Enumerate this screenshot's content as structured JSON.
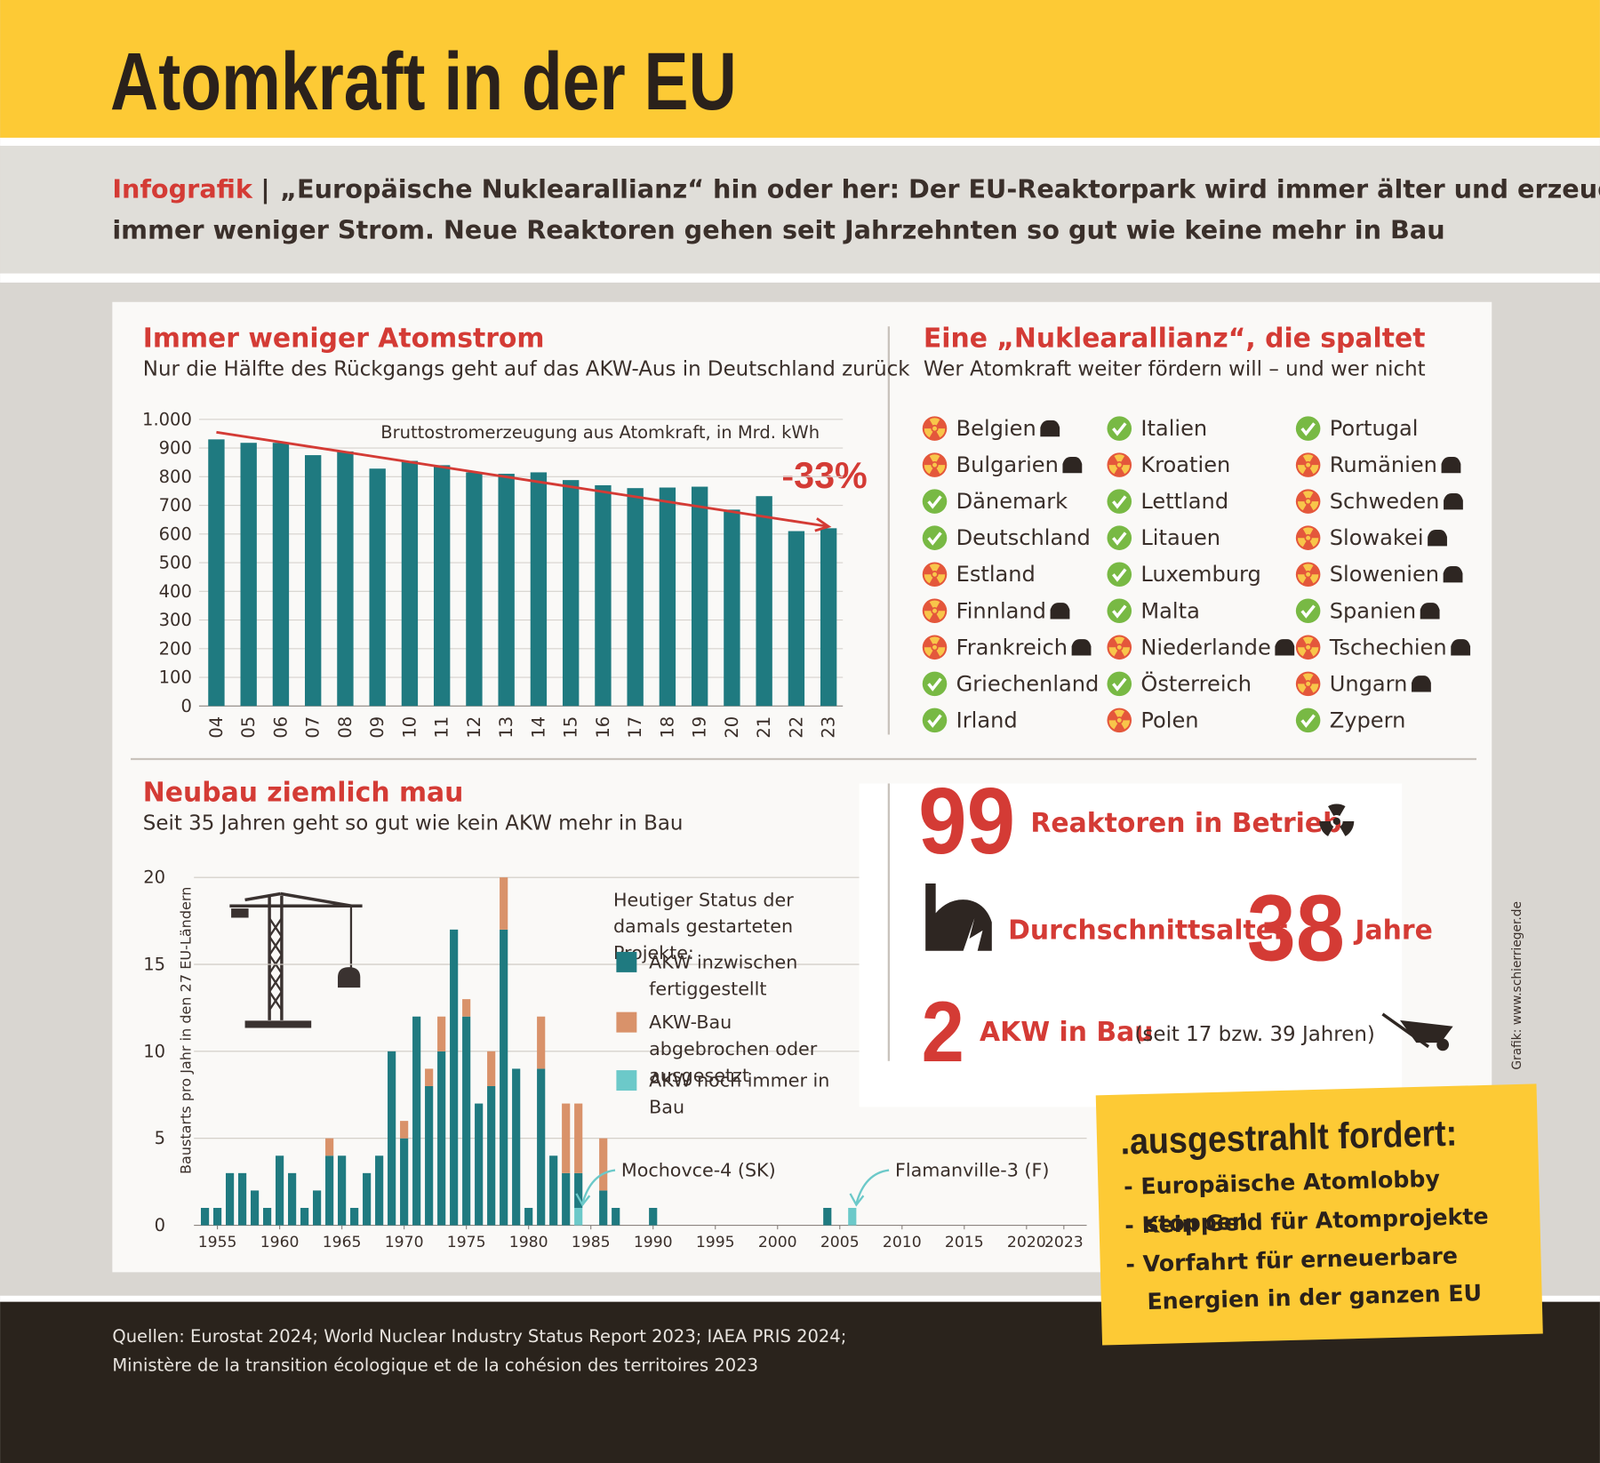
{
  "header": {
    "title": "Atomkraft in der EU",
    "tag": "Infografik",
    "separator": "|",
    "subtitle_lines": [
      "„Europäische Nuklearallianz“ hin oder her: Der EU-Reaktorpark wird immer älter und erzeugt",
      "immer weniger Strom. Neue Reaktoren gehen seit Jahrzehnten so gut wie keine mehr in Bau"
    ]
  },
  "chart_data": [
    {
      "type": "bar",
      "title": "Immer weniger Atomstrom",
      "subtitle": "Nur die Hälfte des Rückgangs geht auf das AKW-Aus in Deutschland zurück",
      "annotation": "Bruttostromerzeugung aus Atomkraft, in Mrd. kWh",
      "change_label": "-33%",
      "trend": {
        "start": 955,
        "end": 626
      },
      "categories": [
        "04",
        "05",
        "06",
        "07",
        "08",
        "09",
        "10",
        "11",
        "12",
        "13",
        "14",
        "15",
        "16",
        "17",
        "18",
        "19",
        "20",
        "21",
        "22",
        "23"
      ],
      "values": [
        930,
        918,
        918,
        875,
        888,
        828,
        855,
        840,
        815,
        810,
        815,
        788,
        770,
        760,
        762,
        765,
        685,
        732,
        610,
        620
      ],
      "color": "#1f7a80",
      "ylim": [
        0,
        1000
      ],
      "yticks": [
        0,
        100,
        200,
        300,
        400,
        500,
        600,
        700,
        800,
        900,
        {
          "value": 1000,
          "label": "1.000"
        }
      ],
      "grid": true
    },
    {
      "type": "stacked_bar",
      "title": "Neubau ziemlich mau",
      "subtitle": "Seit 35 Jahren geht so gut wie kein AKW mehr in Bau",
      "y_label": "Baustarts pro Jahr in den 27 EU-Ländern",
      "legend_title": "Heutiger Status der damals gestarteten Projekte:",
      "x": [
        1954,
        1955,
        1956,
        1957,
        1958,
        1959,
        1960,
        1961,
        1962,
        1963,
        1964,
        1965,
        1966,
        1967,
        1968,
        1969,
        1970,
        1971,
        1972,
        1973,
        1974,
        1975,
        1976,
        1977,
        1978,
        1979,
        1980,
        1981,
        1982,
        1983,
        1984,
        1986,
        1987,
        1990,
        2004,
        2006
      ],
      "series": [
        {
          "name": "AKW inzwischen fertiggestellt",
          "color": "#1f7a80",
          "values": [
            1,
            1,
            3,
            3,
            2,
            1,
            4,
            3,
            1,
            2,
            4,
            4,
            1,
            3,
            4,
            10,
            5,
            12,
            8,
            10,
            17,
            12,
            7,
            8,
            17,
            9,
            1,
            9,
            4,
            3,
            2,
            2,
            1,
            1,
            1,
            0
          ]
        },
        {
          "name": "AKW-Bau abgebrochen oder ausgesetzt",
          "color": "#d9926a",
          "values": [
            0,
            0,
            0,
            0,
            0,
            0,
            0,
            0,
            0,
            0,
            1,
            0,
            0,
            0,
            0,
            0,
            1,
            0,
            1,
            2,
            0,
            1,
            0,
            2,
            3,
            0,
            0,
            3,
            0,
            4,
            4,
            3,
            0,
            0,
            0,
            0
          ]
        },
        {
          "name": "AKW noch immer in Bau",
          "color": "#6cc9c9",
          "values": [
            0,
            0,
            0,
            0,
            0,
            0,
            0,
            0,
            0,
            0,
            0,
            0,
            0,
            0,
            0,
            0,
            0,
            0,
            0,
            0,
            0,
            0,
            0,
            0,
            0,
            0,
            0,
            0,
            0,
            0,
            1,
            0,
            0,
            0,
            0,
            1
          ]
        }
      ],
      "xlim": [
        1953,
        2025
      ],
      "xticks": [
        1955,
        1960,
        1965,
        1970,
        1975,
        1980,
        1985,
        1990,
        1995,
        2000,
        2005,
        2010,
        2015,
        2020,
        2023
      ],
      "ylim": [
        0,
        20
      ],
      "yticks": [
        0,
        5,
        10,
        15,
        20
      ],
      "grid": true,
      "annotations": [
        {
          "text": "Mochovce-4 (SK)",
          "x": 1984
        },
        {
          "text": "Flamanville-3 (F)",
          "x": 2006
        }
      ]
    }
  ],
  "alliance": {
    "title": "Eine „Nuklearallianz“, die spaltet",
    "subtitle": "Wer Atomkraft weiter fördern will – und wer nicht",
    "countries": [
      {
        "name": "Belgien",
        "pro_nuclear": true,
        "reactors": true
      },
      {
        "name": "Bulgarien",
        "pro_nuclear": true,
        "reactors": true
      },
      {
        "name": "Dänemark",
        "pro_nuclear": false,
        "reactors": false
      },
      {
        "name": "Deutschland",
        "pro_nuclear": false,
        "reactors": false
      },
      {
        "name": "Estland",
        "pro_nuclear": true,
        "reactors": false
      },
      {
        "name": "Finnland",
        "pro_nuclear": true,
        "reactors": true
      },
      {
        "name": "Frankreich",
        "pro_nuclear": true,
        "reactors": true
      },
      {
        "name": "Griechenland",
        "pro_nuclear": false,
        "reactors": false
      },
      {
        "name": "Irland",
        "pro_nuclear": false,
        "reactors": false
      },
      {
        "name": "Italien",
        "pro_nuclear": false,
        "reactors": false
      },
      {
        "name": "Kroatien",
        "pro_nuclear": true,
        "reactors": false
      },
      {
        "name": "Lettland",
        "pro_nuclear": false,
        "reactors": false
      },
      {
        "name": "Litauen",
        "pro_nuclear": false,
        "reactors": false
      },
      {
        "name": "Luxemburg",
        "pro_nuclear": false,
        "reactors": false
      },
      {
        "name": "Malta",
        "pro_nuclear": false,
        "reactors": false
      },
      {
        "name": "Niederlande",
        "pro_nuclear": true,
        "reactors": true
      },
      {
        "name": "Österreich",
        "pro_nuclear": false,
        "reactors": false
      },
      {
        "name": "Polen",
        "pro_nuclear": true,
        "reactors": false
      },
      {
        "name": "Portugal",
        "pro_nuclear": false,
        "reactors": false
      },
      {
        "name": "Rumänien",
        "pro_nuclear": true,
        "reactors": true
      },
      {
        "name": "Schweden",
        "pro_nuclear": true,
        "reactors": true
      },
      {
        "name": "Slowakei",
        "pro_nuclear": true,
        "reactors": true
      },
      {
        "name": "Slowenien",
        "pro_nuclear": true,
        "reactors": true
      },
      {
        "name": "Spanien",
        "pro_nuclear": false,
        "reactors": true
      },
      {
        "name": "Tschechien",
        "pro_nuclear": true,
        "reactors": true
      },
      {
        "name": "Ungarn",
        "pro_nuclear": true,
        "reactors": true
      },
      {
        "name": "Zypern",
        "pro_nuclear": false,
        "reactors": false
      }
    ]
  },
  "stats": {
    "reactors": {
      "value": 99,
      "label": "Reaktoren in Betrieb"
    },
    "age": {
      "label": "Durchschnittsalter",
      "value": 38,
      "unit": "Jahre"
    },
    "construction": {
      "value": 2,
      "label": "AKW in Bau",
      "note": "(seit 17 bzw. 39 Jahren)"
    }
  },
  "demands": {
    "title": ".ausgestrahlt fordert:",
    "items": [
      "- Europäische Atomlobby stoppen",
      "- Kein Geld für Atomprojekte",
      "- Vorfahrt für erneuerbare Energien in der ganzen EU"
    ]
  },
  "credit": "Grafik: www.schierrieger.de",
  "sources": [
    "Quellen: Eurostat 2024; World Nuclear Industry Status Report 2023; IAEA PRIS 2024;",
    "Ministère de la transition écologique et de la cohésion des territoires 2023"
  ]
}
